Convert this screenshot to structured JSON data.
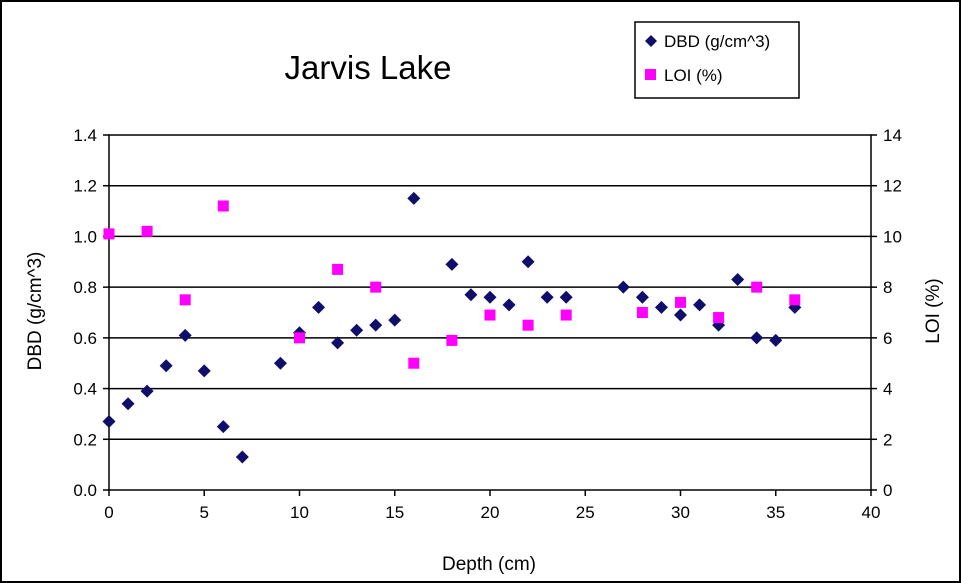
{
  "chart_data": {
    "type": "scatter",
    "title": "Jarvis Lake",
    "xlabel": "Depth (cm)",
    "ylabel": "DBD (g/cm^3)",
    "y2label": "LOI (%)",
    "xlim": [
      0,
      40
    ],
    "ylim": [
      0,
      1.4
    ],
    "y2lim": [
      0,
      14
    ],
    "x_ticks": [
      "0",
      "5",
      "10",
      "15",
      "20",
      "25",
      "30",
      "35",
      "40"
    ],
    "y_ticks": [
      "0.0",
      "0.2",
      "0.4",
      "0.6",
      "0.8",
      "1.0",
      "1.2",
      "1.4"
    ],
    "y2_ticks": [
      "0",
      "2",
      "4",
      "6",
      "8",
      "10",
      "12",
      "14"
    ],
    "grid": true,
    "legend_position": "top-right",
    "series": [
      {
        "name": "DBD (g/cm^3)",
        "axis": "left",
        "marker": "diamond",
        "color": "#0f0f6b",
        "points": [
          [
            0,
            0.27
          ],
          [
            1,
            0.34
          ],
          [
            2,
            0.39
          ],
          [
            3,
            0.49
          ],
          [
            4,
            0.61
          ],
          [
            5,
            0.47
          ],
          [
            6,
            0.25
          ],
          [
            7,
            0.13
          ],
          [
            9,
            0.5
          ],
          [
            10,
            0.62
          ],
          [
            11,
            0.72
          ],
          [
            12,
            0.58
          ],
          [
            13,
            0.63
          ],
          [
            14,
            0.65
          ],
          [
            15,
            0.67
          ],
          [
            16,
            1.15
          ],
          [
            18,
            0.89
          ],
          [
            19,
            0.77
          ],
          [
            20,
            0.76
          ],
          [
            21,
            0.73
          ],
          [
            22,
            0.9
          ],
          [
            23,
            0.76
          ],
          [
            24,
            0.76
          ],
          [
            27,
            0.8
          ],
          [
            28,
            0.76
          ],
          [
            29,
            0.72
          ],
          [
            30,
            0.69
          ],
          [
            31,
            0.73
          ],
          [
            32,
            0.65
          ],
          [
            33,
            0.83
          ],
          [
            34,
            0.6
          ],
          [
            35,
            0.59
          ],
          [
            36,
            0.72
          ]
        ]
      },
      {
        "name": "LOI (%)",
        "axis": "right",
        "marker": "square",
        "color": "#ff00ff",
        "points": [
          [
            0,
            10.1
          ],
          [
            2,
            10.2
          ],
          [
            4,
            7.5
          ],
          [
            6,
            11.2
          ],
          [
            10,
            6.0
          ],
          [
            12,
            8.7
          ],
          [
            14,
            8.0
          ],
          [
            16,
            5.0
          ],
          [
            18,
            5.9
          ],
          [
            20,
            6.9
          ],
          [
            22,
            6.5
          ],
          [
            24,
            6.9
          ],
          [
            28,
            7.0
          ],
          [
            30,
            7.4
          ],
          [
            32,
            6.8
          ],
          [
            34,
            8.0
          ],
          [
            36,
            7.5
          ]
        ]
      }
    ]
  }
}
